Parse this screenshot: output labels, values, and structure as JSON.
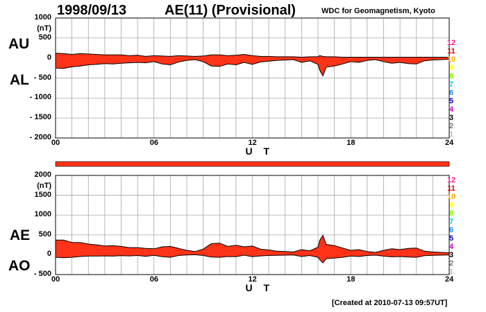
{
  "header": {
    "date": "1998/09/13",
    "index_title": "AE(11) (Provisional)",
    "source": "WDC for Geomagnetism, Kyoto",
    "created": "[Created at 2010-07-13 09:57UT]"
  },
  "station_scale": {
    "labels": [
      "12",
      "11",
      "10",
      "9",
      "8",
      "7",
      "6",
      "5",
      "4",
      "3",
      "2",
      "1"
    ],
    "colors": [
      "#ff1493",
      "#d40000",
      "#ffa500",
      "#ffff00",
      "#7cfc00",
      "#00ced1",
      "#1e90ff",
      "#0000cd",
      "#cc00cc",
      "#000000",
      "#777777",
      "#bbbbbb"
    ]
  },
  "chart_data": [
    {
      "type": "area",
      "panel": "AU/AL",
      "label_upper": "AU",
      "label_lower": "AL",
      "unit": "(nT)",
      "xlabel": "U T",
      "xlim": [
        0,
        24
      ],
      "x_ticks": [
        "00",
        "06",
        "12",
        "18",
        "24"
      ],
      "ylim": [
        -2000,
        1000
      ],
      "y_ticks": [
        "1000",
        "500",
        "0",
        "- 500",
        "- 1000",
        "- 1500",
        "- 2000"
      ],
      "grid": true,
      "fill_color": "#ff3318",
      "x": [
        0,
        0.5,
        1,
        1.5,
        2,
        2.5,
        3,
        3.5,
        4,
        4.5,
        5,
        5.5,
        6,
        6.5,
        7,
        7.5,
        8,
        8.5,
        9,
        9.5,
        10,
        10.5,
        11,
        11.5,
        12,
        12.5,
        13,
        13.5,
        14,
        14.5,
        15,
        15.5,
        16,
        16.1,
        16.3,
        16.5,
        17,
        17.5,
        18,
        18.5,
        19,
        19.5,
        20,
        20.5,
        21,
        21.5,
        22,
        22.5,
        23,
        23.5,
        24
      ],
      "series": [
        {
          "name": "AU",
          "values": [
            120,
            110,
            90,
            110,
            100,
            90,
            80,
            80,
            80,
            60,
            70,
            40,
            60,
            50,
            40,
            60,
            50,
            40,
            50,
            80,
            80,
            60,
            70,
            90,
            60,
            40,
            40,
            30,
            30,
            30,
            20,
            30,
            30,
            60,
            40,
            30,
            30,
            20,
            20,
            20,
            20,
            20,
            20,
            20,
            20,
            20,
            20,
            20,
            20,
            20,
            20
          ]
        },
        {
          "name": "AL",
          "values": [
            -250,
            -260,
            -220,
            -200,
            -170,
            -160,
            -140,
            -150,
            -130,
            -120,
            -110,
            -120,
            -90,
            -150,
            -170,
            -100,
            -60,
            -40,
            -90,
            -200,
            -210,
            -150,
            -170,
            -110,
            -160,
            -100,
            -80,
            -60,
            -50,
            -40,
            -110,
            -70,
            -160,
            -300,
            -450,
            -230,
            -200,
            -150,
            -90,
            -110,
            -60,
            -40,
            -90,
            -130,
            -110,
            -140,
            -150,
            -70,
            -50,
            -40,
            -30
          ]
        }
      ]
    },
    {
      "type": "area",
      "panel": "AE/AO",
      "label_upper": "AE",
      "label_lower": "AO",
      "unit": "(nT)",
      "xlabel": "U T",
      "xlim": [
        0,
        24
      ],
      "x_ticks": [
        "00",
        "06",
        "12",
        "18",
        "24"
      ],
      "ylim": [
        -500,
        2000
      ],
      "y_ticks": [
        "2000",
        "1500",
        "1000",
        "500",
        "0",
        "- 500"
      ],
      "grid": true,
      "fill_color": "#ff3318",
      "x": [
        0,
        0.5,
        1,
        1.5,
        2,
        2.5,
        3,
        3.5,
        4,
        4.5,
        5,
        5.5,
        6,
        6.5,
        7,
        7.5,
        8,
        8.5,
        9,
        9.5,
        10,
        10.5,
        11,
        11.5,
        12,
        12.5,
        13,
        13.5,
        14,
        14.5,
        15,
        15.5,
        16,
        16.1,
        16.3,
        16.5,
        17,
        17.5,
        18,
        18.5,
        19,
        19.5,
        20,
        20.5,
        21,
        21.5,
        22,
        22.5,
        23,
        23.5,
        24
      ],
      "series": [
        {
          "name": "AE",
          "values": [
            370,
            370,
            310,
            310,
            270,
            250,
            220,
            230,
            210,
            180,
            180,
            160,
            150,
            200,
            210,
            160,
            110,
            80,
            140,
            280,
            290,
            210,
            240,
            200,
            220,
            140,
            120,
            90,
            80,
            70,
            130,
            100,
            190,
            360,
            490,
            260,
            230,
            170,
            110,
            130,
            80,
            60,
            110,
            150,
            130,
            160,
            170,
            90,
            70,
            60,
            50
          ]
        },
        {
          "name": "AO",
          "values": [
            -65,
            -75,
            -65,
            -45,
            -35,
            -35,
            -30,
            -35,
            -25,
            -30,
            -20,
            -40,
            -15,
            -50,
            -65,
            -20,
            -5,
            0,
            -20,
            -60,
            -65,
            -45,
            -50,
            -10,
            -50,
            -30,
            -20,
            -15,
            -10,
            -5,
            -45,
            -20,
            -65,
            -120,
            -205,
            -100,
            -85,
            -65,
            -35,
            -45,
            -20,
            -10,
            -35,
            -55,
            -45,
            -60,
            -65,
            -25,
            -15,
            -10,
            -5
          ]
        }
      ]
    }
  ]
}
